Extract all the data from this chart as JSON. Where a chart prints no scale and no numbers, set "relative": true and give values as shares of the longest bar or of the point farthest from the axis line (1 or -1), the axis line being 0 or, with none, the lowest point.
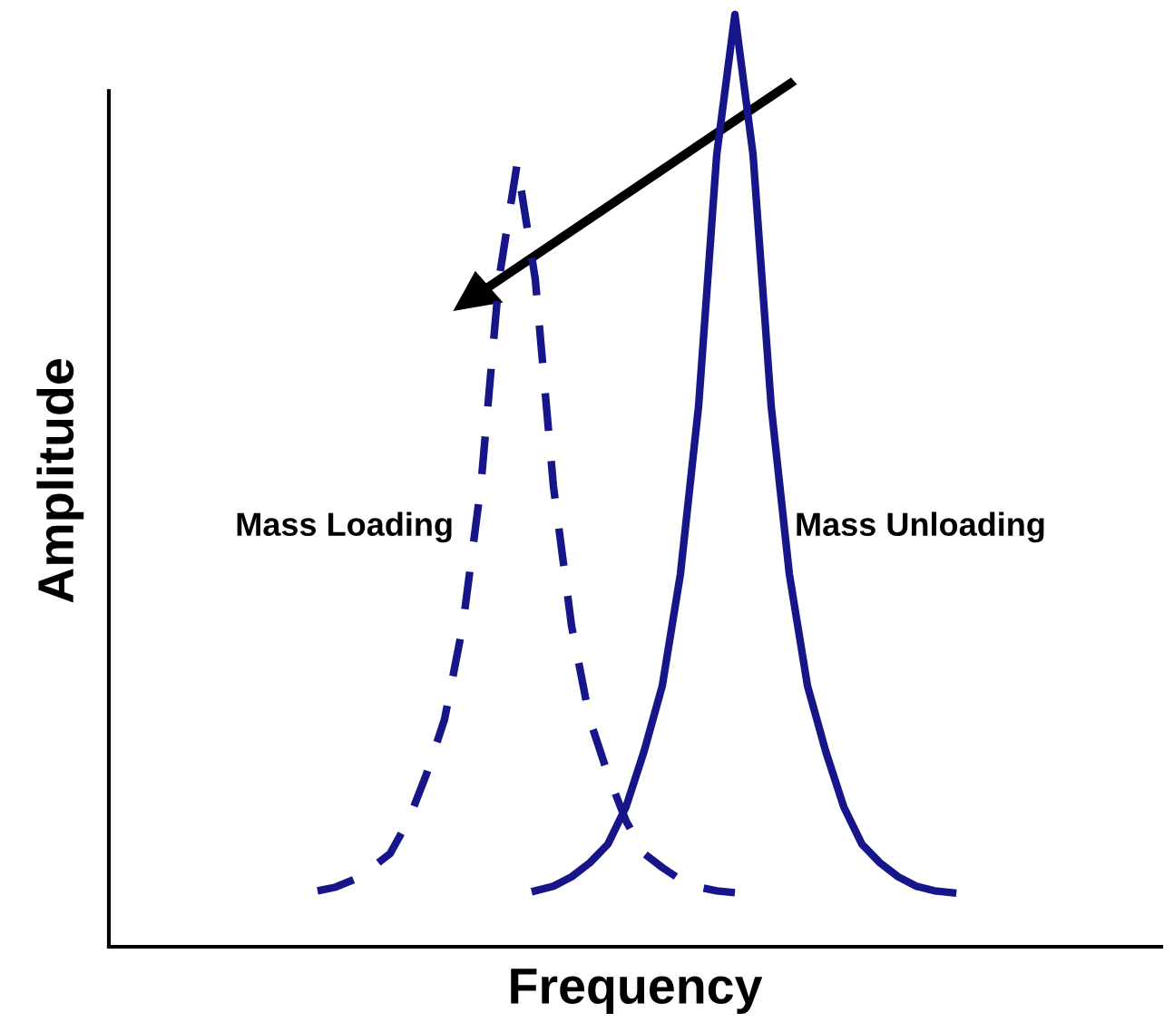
{
  "chart_data": {
    "type": "line",
    "relative": true,
    "xlabel": "Frequency",
    "ylabel": "Amplitude",
    "legend": false,
    "categories": [
      null,
      null,
      null,
      null,
      null,
      null,
      null,
      null,
      null,
      null,
      null,
      null,
      null,
      null,
      null,
      null,
      null,
      null,
      null,
      null,
      null,
      null,
      null,
      null,
      null,
      null,
      null,
      null,
      null,
      null,
      null,
      null,
      null,
      null,
      null,
      null,
      null,
      null,
      null,
      null,
      null,
      null,
      null,
      null,
      null,
      null,
      null,
      null,
      null,
      null,
      null,
      null,
      null,
      null,
      null,
      null,
      null,
      null
    ],
    "series": [
      {
        "name": "Mass Loading",
        "color": "#16168a",
        "line_style": "dashed",
        "values": [
          null,
          null,
          null,
          null,
          null,
          null,
          null,
          null,
          null,
          null,
          null,
          0.06,
          0.064,
          0.072,
          0.085,
          0.1,
          0.135,
          0.185,
          0.244,
          0.344,
          0.494,
          0.716,
          0.84,
          0.716,
          0.494,
          0.344,
          0.244,
          0.185,
          0.135,
          0.1,
          0.085,
          0.072,
          0.064,
          0.06,
          0.058,
          null,
          null,
          null,
          null,
          null,
          null,
          null,
          null,
          null,
          null,
          null,
          null,
          null,
          null,
          null,
          null,
          null,
          null,
          null,
          null,
          null,
          null,
          null
        ]
      },
      {
        "name": "Mass Unloading",
        "color": "#16168a",
        "line_style": "solid",
        "values": [
          null,
          null,
          null,
          null,
          null,
          null,
          null,
          null,
          null,
          null,
          null,
          null,
          null,
          null,
          null,
          null,
          null,
          null,
          null,
          null,
          null,
          null,
          null,
          0.06,
          0.065,
          0.075,
          0.09,
          0.11,
          0.15,
          0.21,
          0.28,
          0.4,
          0.58,
          0.85,
          1.0,
          0.85,
          0.58,
          0.4,
          0.28,
          0.21,
          0.15,
          0.11,
          0.09,
          0.075,
          0.065,
          0.06,
          0.058,
          null,
          null,
          null,
          null,
          null,
          null,
          null,
          null,
          null,
          null,
          null
        ]
      }
    ]
  }
}
